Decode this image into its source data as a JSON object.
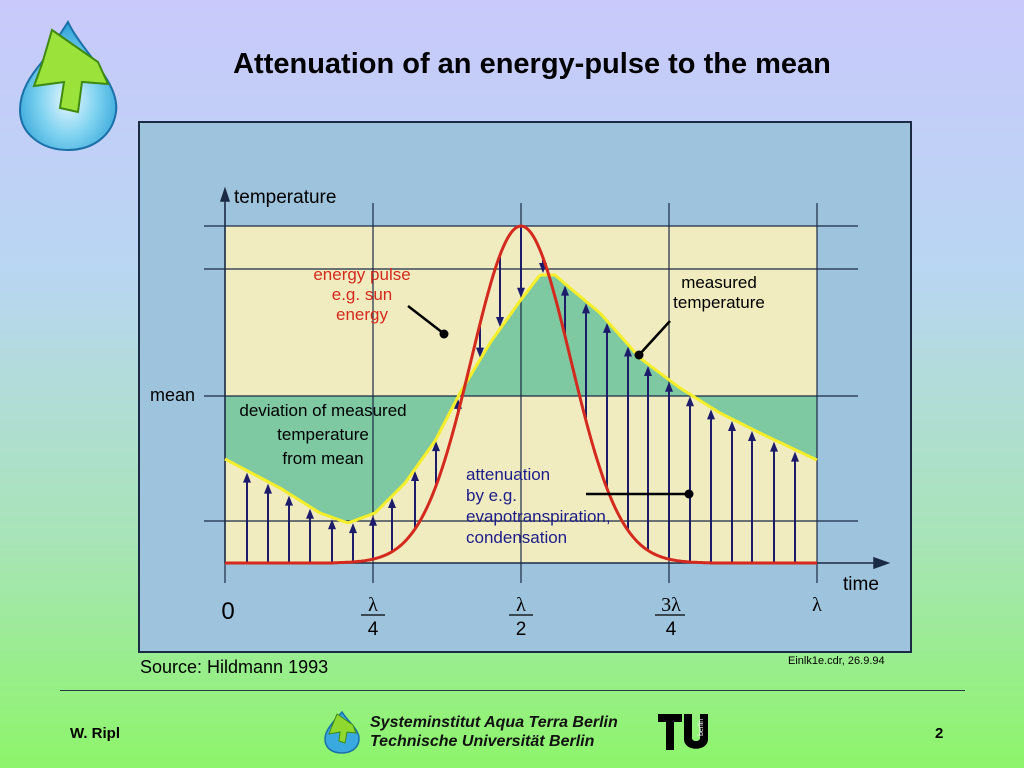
{
  "title": "Attenuation of an energy-pulse to the mean",
  "diagram": {
    "y_axis_label": "temperature",
    "x_axis_label": "time",
    "mean_label": "mean",
    "energy_pulse_label": [
      "energy pulse",
      "e.g. sun",
      "energy"
    ],
    "measured_label": [
      "measured",
      "temperature"
    ],
    "deviation_label": [
      "deviation of measured",
      "temperature",
      "from mean"
    ],
    "attenuation_label": [
      "attenuation",
      "by e.g.",
      "evapotranspiration,",
      "condensation"
    ],
    "x_ticks": {
      "zero": "0",
      "lambda": "λ",
      "four": "4",
      "two": "2",
      "three_lambda": "3λ"
    },
    "colors": {
      "energy_pulse": "#d42a1e",
      "measured": "#f5ee2a",
      "deviation_fill": "#7ec8a2",
      "background_band": "#f0ecc0",
      "arrows": "#1c1c6b",
      "panel": "#9ec3dc"
    }
  },
  "source": "Source: Hildmann 1993",
  "file_ref": "Einlk1e.cdr, 26.9.94",
  "footer": {
    "author": "W. Ripl",
    "institute_line1": "Systeminstitut Aqua Terra Berlin",
    "institute_line2": "Technische Universität Berlin",
    "page": "2",
    "tu_logo_text": "berlin"
  }
}
